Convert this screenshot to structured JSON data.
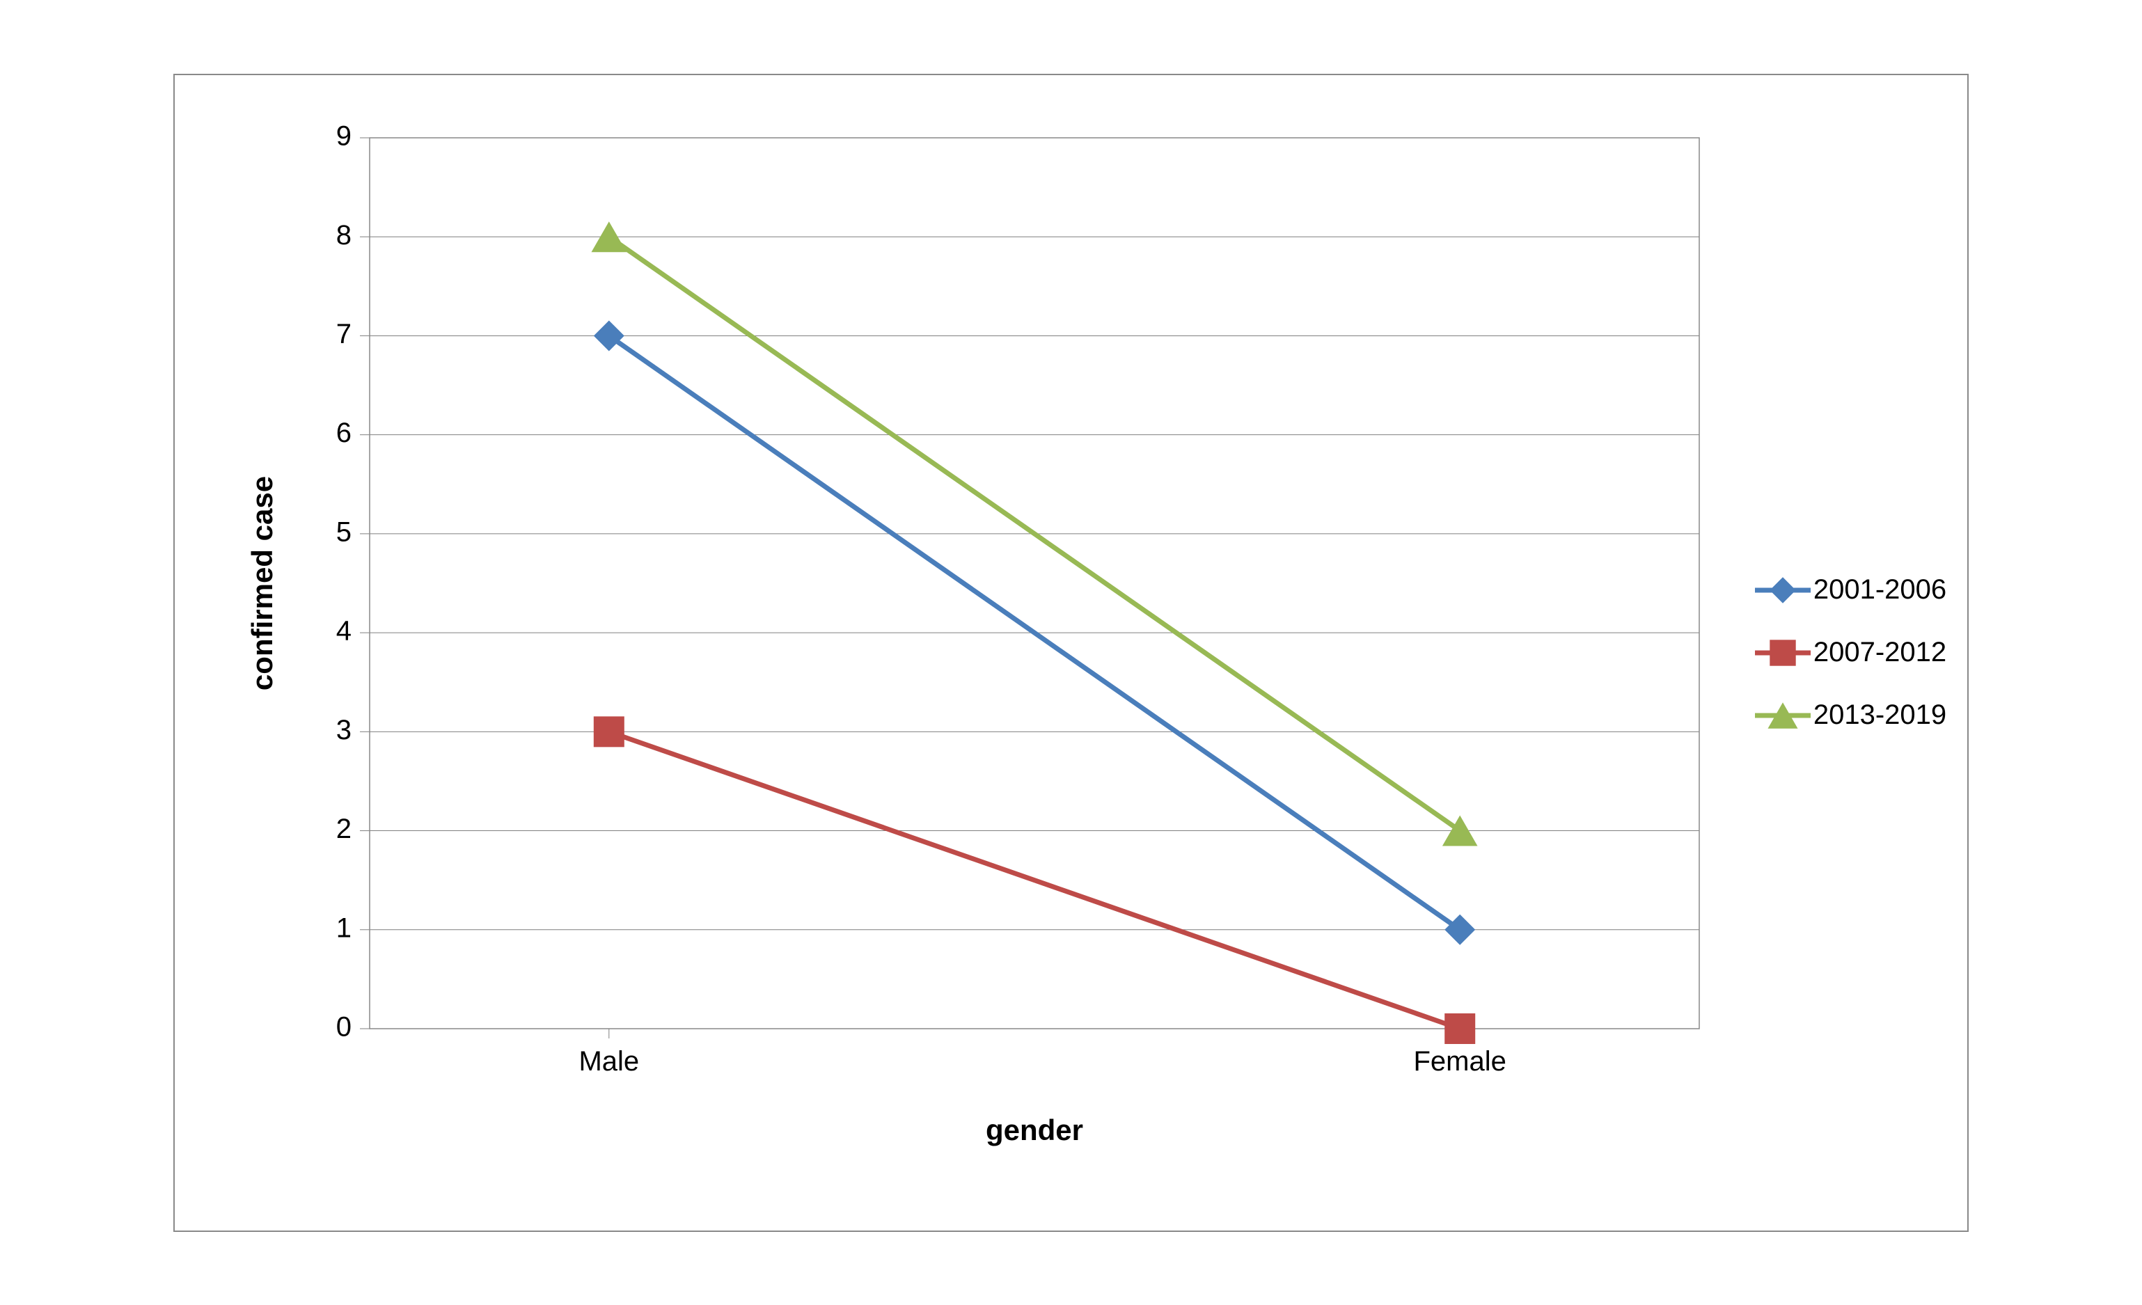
{
  "chart": {
    "type": "line",
    "background_color": "#ffffff",
    "border_color": "#898989",
    "grid_color": "#7f7f7f",
    "x": {
      "categories": [
        "Male",
        "Female"
      ],
      "title": "gender",
      "title_fontsize": 42,
      "title_fontweight": "bold",
      "tick_fontsize": 40
    },
    "y": {
      "title": "confirmed case",
      "title_fontsize": 42,
      "title_fontweight": "bold",
      "ylim": [
        0,
        9
      ],
      "ytick_step": 1,
      "tick_fontsize": 40
    },
    "series": [
      {
        "name": "2001-2006",
        "values": [
          7,
          1
        ],
        "color": "#4a7ebb",
        "marker": "diamond",
        "marker_size": 22,
        "line_width": 7
      },
      {
        "name": "2007-2012",
        "values": [
          3,
          0
        ],
        "color": "#be4b48",
        "marker": "square",
        "marker_size": 22,
        "line_width": 7
      },
      {
        "name": "2013-2019",
        "values": [
          8,
          2
        ],
        "color": "#98b954",
        "marker": "triangle",
        "marker_size": 22,
        "line_width": 7
      }
    ],
    "legend": {
      "position": "right",
      "fontsize": 40,
      "line_length": 80
    }
  }
}
